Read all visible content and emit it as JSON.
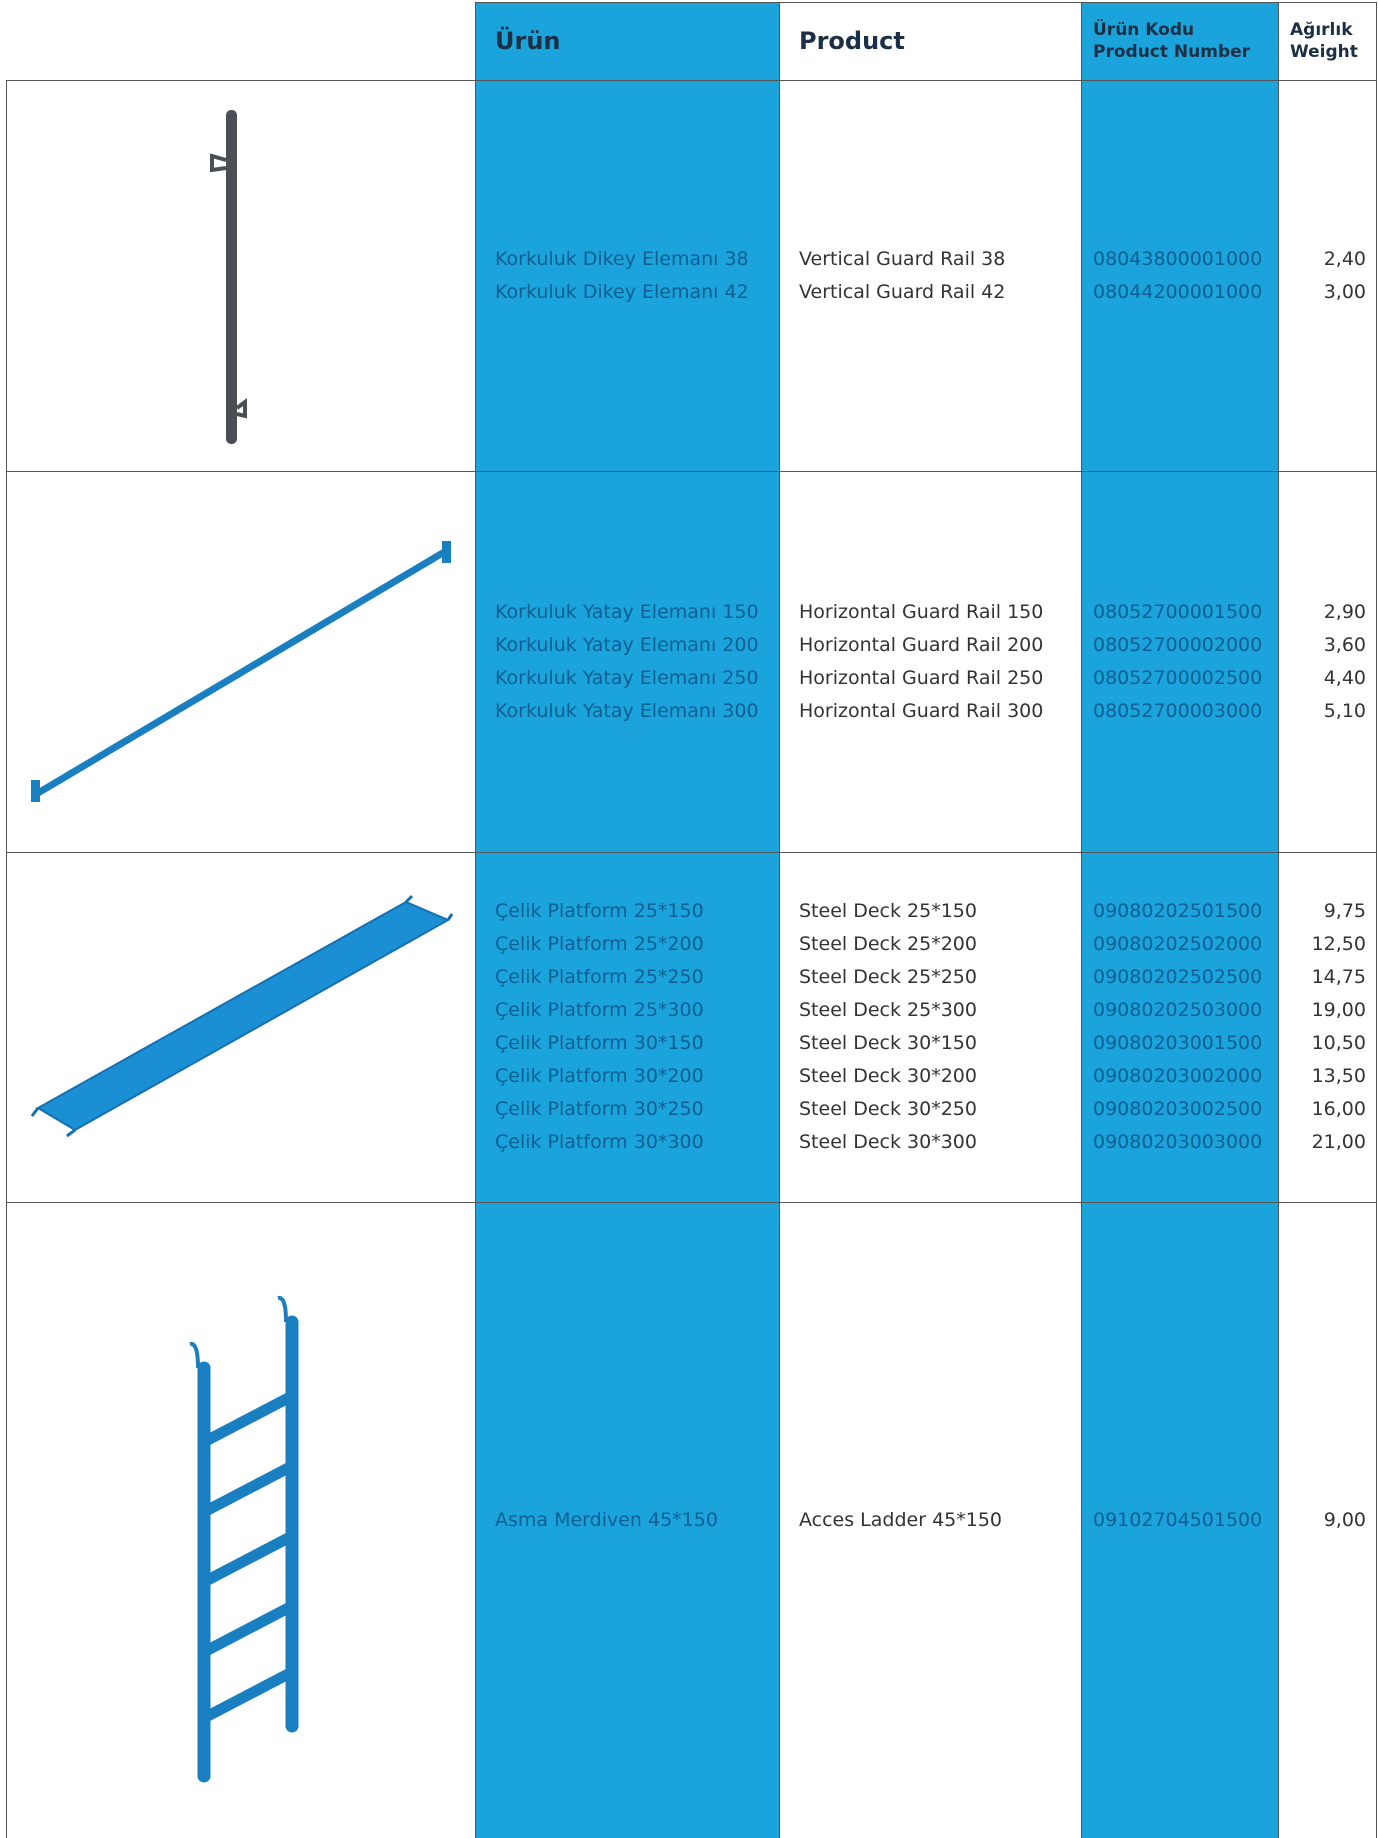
{
  "header": {
    "urun": "Ürün",
    "product": "Product",
    "code": [
      "Ürün Kodu",
      "Product Number"
    ],
    "weight": [
      "Ağırlık",
      "Weight"
    ]
  },
  "rows": [
    {
      "urun": [
        "Korkuluk Dikey Elemanı 38",
        "Korkuluk Dikey Elemanı 42"
      ],
      "product": [
        "Vertical Guard Rail 38",
        "Vertical Guard Rail 42"
      ],
      "code": [
        "08043800001000",
        "08044200001000"
      ],
      "weight": [
        "2,40",
        "3,00"
      ]
    },
    {
      "urun": [
        "Korkuluk Yatay Elemanı 150",
        "Korkuluk Yatay Elemanı 200",
        "Korkuluk Yatay Elemanı 250",
        "Korkuluk Yatay Elemanı 300"
      ],
      "product": [
        "Horizontal Guard Rail 150",
        "Horizontal Guard Rail 200",
        "Horizontal Guard Rail 250",
        "Horizontal Guard Rail 300"
      ],
      "code": [
        "08052700001500",
        "08052700002000",
        "08052700002500",
        "08052700003000"
      ],
      "weight": [
        "2,90",
        "3,60",
        "4,40",
        "5,10"
      ]
    },
    {
      "urun": [
        "Çelik Platform 25*150",
        "Çelik Platform 25*200",
        "Çelik Platform 25*250",
        "Çelik Platform 25*300",
        "Çelik Platform 30*150",
        "Çelik Platform 30*200",
        "Çelik Platform 30*250",
        "Çelik Platform 30*300"
      ],
      "product": [
        "Steel Deck 25*150",
        "Steel Deck 25*200",
        "Steel Deck 25*250",
        "Steel Deck 25*300",
        "Steel Deck 30*150",
        "Steel Deck 30*200",
        "Steel Deck 30*250",
        "Steel Deck 30*300"
      ],
      "code": [
        "09080202501500",
        "09080202502000",
        "09080202502500",
        "09080202503000",
        "09080203001500",
        "09080203002000",
        "09080203002500",
        "09080203003000"
      ],
      "weight": [
        "9,75",
        "12,50",
        "14,75",
        "19,00",
        "10,50",
        "13,50",
        "16,00",
        "21,00"
      ]
    },
    {
      "urun": [
        "Asma Merdiven 45*150"
      ],
      "product": [
        "Acces Ladder 45*150"
      ],
      "code": [
        "09102704501500"
      ],
      "weight": [
        "9,00"
      ]
    }
  ]
}
